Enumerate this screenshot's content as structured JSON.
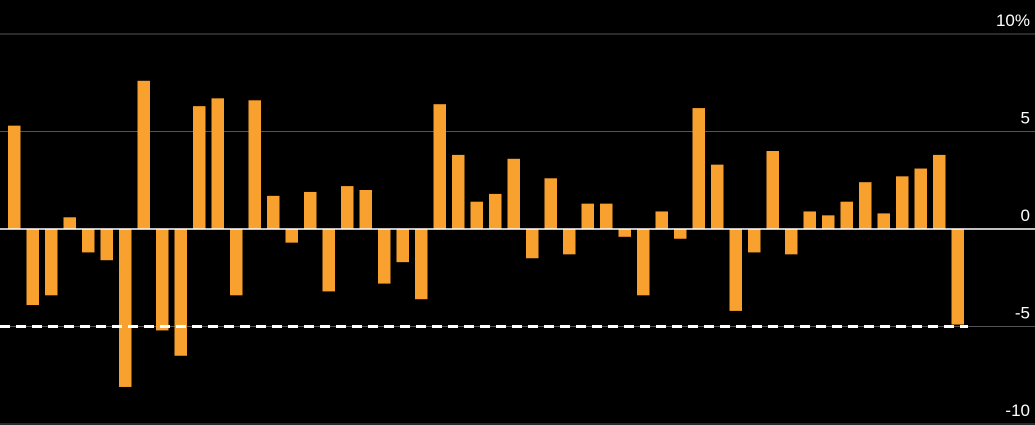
{
  "chart_data": {
    "type": "bar",
    "values": [
      5.3,
      -3.9,
      -3.4,
      0.6,
      -1.2,
      -1.6,
      -8.1,
      7.6,
      -5.2,
      -6.5,
      6.3,
      6.7,
      -3.4,
      6.6,
      1.7,
      -0.7,
      1.9,
      -3.2,
      2.2,
      2.0,
      -2.8,
      -1.7,
      -3.6,
      6.4,
      3.8,
      1.4,
      1.8,
      3.6,
      -1.5,
      2.6,
      -1.3,
      1.3,
      1.3,
      -0.4,
      -3.4,
      0.9,
      -0.5,
      6.2,
      3.3,
      -4.2,
      -1.2,
      4.0,
      -1.3,
      0.9,
      0.7,
      1.4,
      2.4,
      0.8,
      2.7,
      3.1,
      3.8,
      -4.9
    ],
    "color": "#f9a12e",
    "ylim": [
      -10,
      10
    ],
    "yticks": [
      -10,
      -5,
      0,
      5,
      {
        "value": 10,
        "label": "10%"
      }
    ],
    "grid": true,
    "reference_value": -5
  }
}
